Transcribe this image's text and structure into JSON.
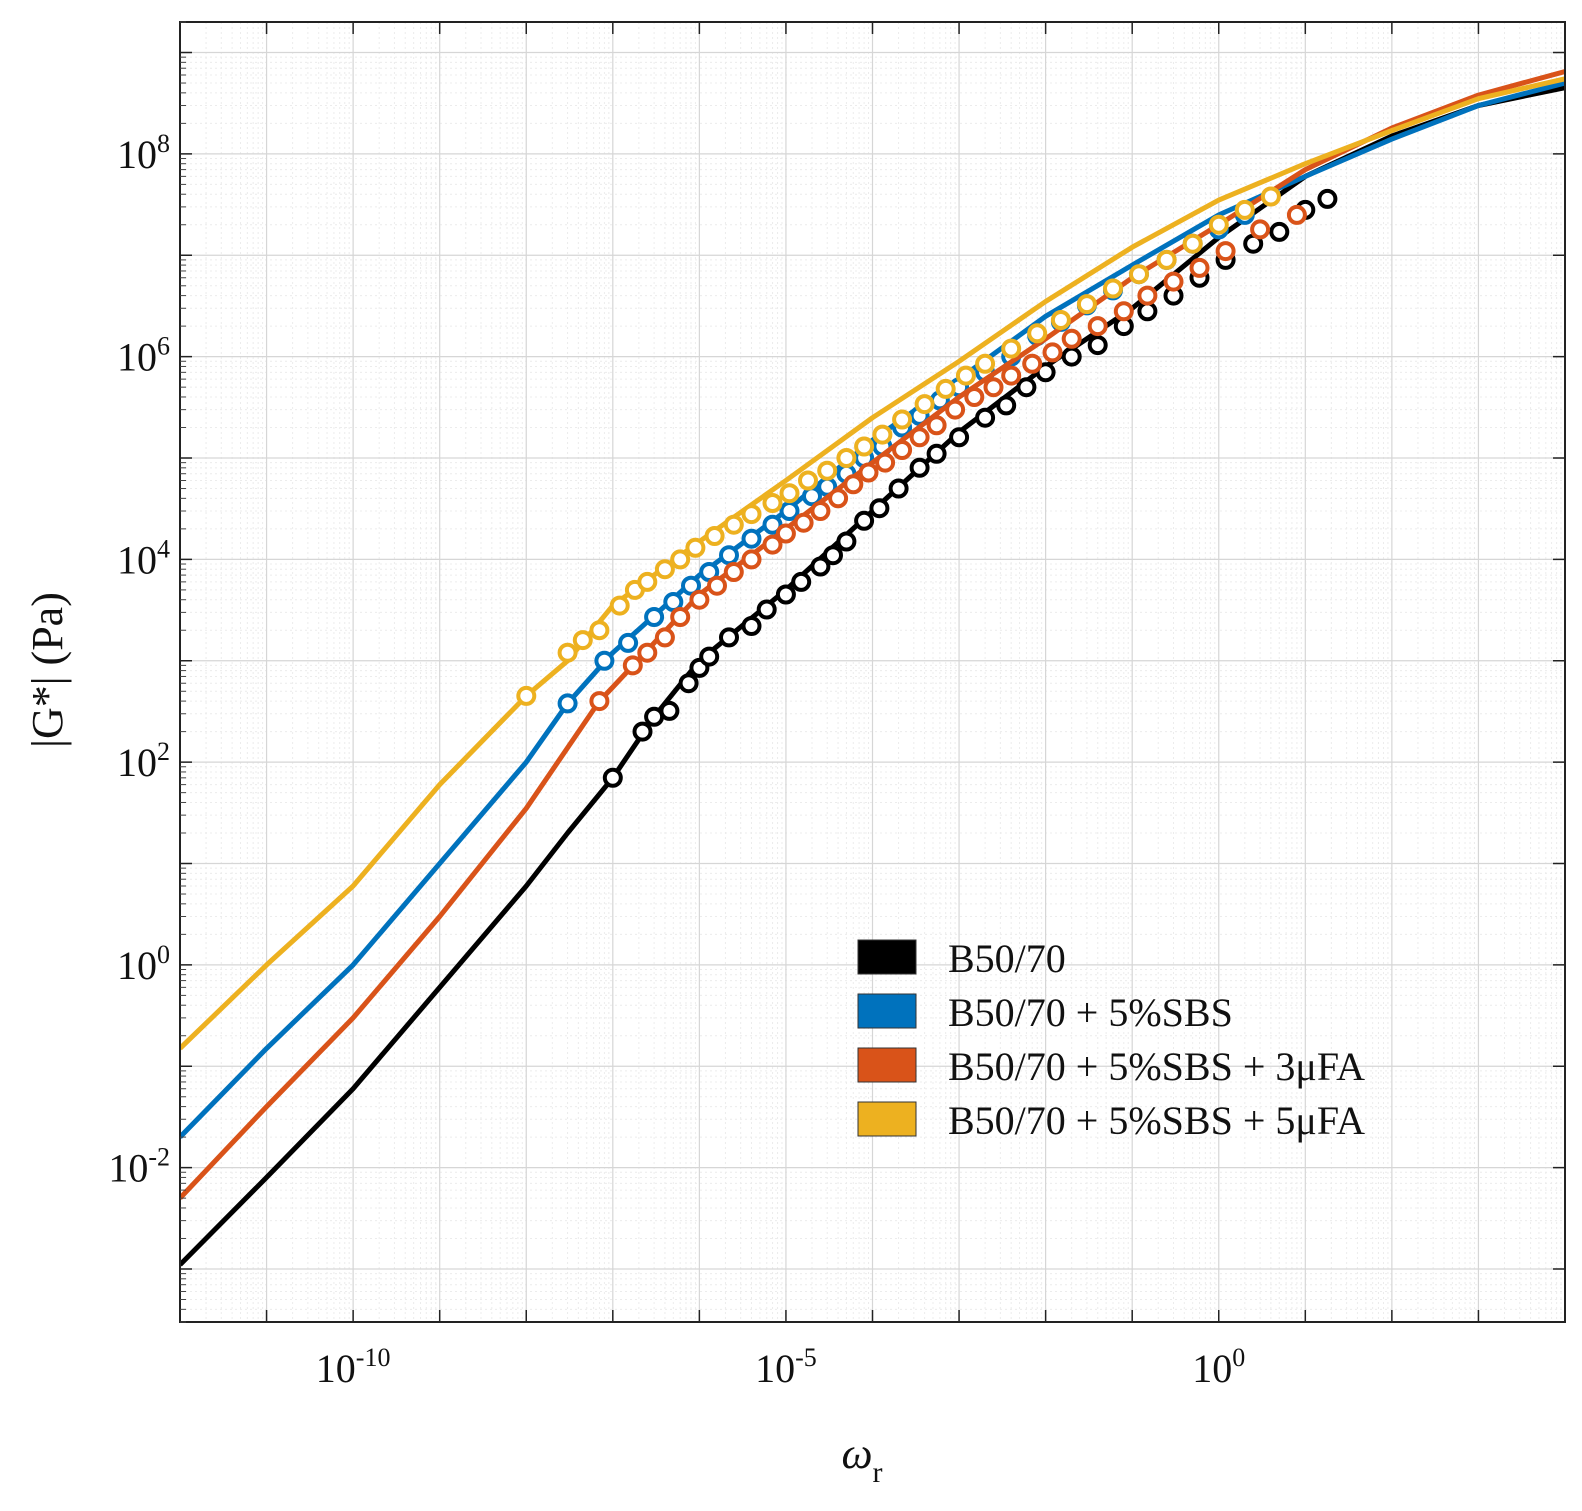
{
  "chart_data": {
    "type": "line",
    "title": "",
    "xlabel": "ω",
    "xlabel_subscript": "r",
    "ylabel": "|G*| (Pa)",
    "xscale": "log",
    "yscale": "log",
    "xlim": [
      1e-12,
      10000.0
    ],
    "ylim": [
      0.0003,
      2000000000.0
    ],
    "x_ticks": [
      {
        "value": 1e-10,
        "base": "10",
        "exp": "-10"
      },
      {
        "value": 1e-05,
        "base": "10",
        "exp": "-5"
      },
      {
        "value": 1,
        "base": "10",
        "exp": "0"
      }
    ],
    "y_ticks": [
      {
        "value": 0.01,
        "base": "10",
        "exp": "-2"
      },
      {
        "value": 1,
        "base": "10",
        "exp": "0"
      },
      {
        "value": 100.0,
        "base": "10",
        "exp": "2"
      },
      {
        "value": 10000.0,
        "base": "10",
        "exp": "4"
      },
      {
        "value": 1000000.0,
        "base": "10",
        "exp": "6"
      },
      {
        "value": 100000000.0,
        "base": "10",
        "exp": "8"
      }
    ],
    "grid": true,
    "minor_grid": true,
    "legend_position": "lower-right",
    "series": [
      {
        "name": "B50/70",
        "color": "#000000",
        "line": [
          [
            1e-12,
            0.0011
          ],
          [
            1e-11,
            0.008
          ],
          [
            1e-10,
            0.06
          ],
          [
            1e-09,
            0.6
          ],
          [
            1e-08,
            6
          ],
          [
            3e-08,
            20
          ],
          [
            1e-07,
            70
          ],
          [
            3e-07,
            280
          ],
          [
            1e-06,
            1000
          ],
          [
            1e-05,
            5000
          ],
          [
            0.0001,
            30000
          ],
          [
            0.001,
            180000
          ],
          [
            0.01,
            800000
          ],
          [
            0.1,
            3000000
          ],
          [
            1,
            15000000
          ],
          [
            10,
            60000000
          ],
          [
            100,
            150000000
          ],
          [
            1000,
            300000000
          ],
          [
            10000,
            450000000
          ]
        ],
        "markers": [
          [
            1e-07,
            70
          ],
          [
            2.2e-07,
            200
          ],
          [
            3e-07,
            280
          ],
          [
            4.5e-07,
            320
          ],
          [
            7.5e-07,
            600
          ],
          [
            1e-06,
            850
          ],
          [
            1.3e-06,
            1100
          ],
          [
            2.2e-06,
            1700
          ],
          [
            4e-06,
            2200
          ],
          [
            6e-06,
            3200
          ],
          [
            1e-05,
            4500
          ],
          [
            1.5e-05,
            6000
          ],
          [
            2.5e-05,
            8500
          ],
          [
            3.5e-05,
            11000
          ],
          [
            5e-05,
            15000
          ],
          [
            8e-05,
            24000
          ],
          [
            0.00012,
            32000
          ],
          [
            0.0002,
            50000
          ],
          [
            0.00035,
            80000
          ],
          [
            0.00055,
            110000
          ],
          [
            0.001,
            160000
          ],
          [
            0.002,
            250000
          ],
          [
            0.0035,
            330000
          ],
          [
            0.006,
            500000
          ],
          [
            0.01,
            700000
          ],
          [
            0.02,
            1000000
          ],
          [
            0.04,
            1300000
          ],
          [
            0.08,
            2000000
          ],
          [
            0.15,
            2800000
          ],
          [
            0.3,
            4000000
          ],
          [
            0.6,
            6000000
          ],
          [
            1.2,
            9000000
          ],
          [
            2.5,
            13000000
          ],
          [
            5,
            17000000
          ],
          [
            10,
            28000000
          ],
          [
            18,
            36000000
          ]
        ]
      },
      {
        "name": "B50/70 + 5%SBS",
        "color": "#0072bd",
        "line": [
          [
            1e-12,
            0.02
          ],
          [
            1e-11,
            0.15
          ],
          [
            1e-10,
            1
          ],
          [
            1e-09,
            10
          ],
          [
            1e-08,
            100
          ],
          [
            3e-08,
            380
          ],
          [
            1e-07,
            1200
          ],
          [
            1e-06,
            7000
          ],
          [
            1e-05,
            30000
          ],
          [
            0.0001,
            150000
          ],
          [
            0.001,
            600000
          ],
          [
            0.01,
            2500000
          ],
          [
            0.1,
            8000000
          ],
          [
            1,
            25000000
          ],
          [
            10,
            60000000
          ],
          [
            100,
            140000000
          ],
          [
            1000,
            300000000
          ],
          [
            10000,
            500000000
          ]
        ],
        "markers": [
          [
            3e-08,
            380
          ],
          [
            8e-08,
            1000
          ],
          [
            1.5e-07,
            1500
          ],
          [
            3e-07,
            2700
          ],
          [
            5e-07,
            3800
          ],
          [
            8e-07,
            5500
          ],
          [
            1.3e-06,
            7500
          ],
          [
            2.2e-06,
            11000
          ],
          [
            4e-06,
            16000
          ],
          [
            7e-06,
            22000
          ],
          [
            1.1e-05,
            30000
          ],
          [
            2e-05,
            42000
          ],
          [
            3e-05,
            52000
          ],
          [
            5e-05,
            70000
          ],
          [
            8e-05,
            100000
          ],
          [
            0.00013,
            130000
          ],
          [
            0.00022,
            200000
          ],
          [
            0.00035,
            260000
          ],
          [
            0.0006,
            370000
          ],
          [
            0.001,
            500000
          ],
          [
            0.002,
            700000
          ],
          [
            0.004,
            1000000
          ],
          [
            0.008,
            1600000
          ],
          [
            0.015,
            2200000
          ],
          [
            0.03,
            3200000
          ],
          [
            0.06,
            4500000
          ],
          [
            0.12,
            6500000
          ],
          [
            0.25,
            9000000
          ],
          [
            0.5,
            13000000
          ],
          [
            1,
            18000000
          ],
          [
            2,
            25000000
          ]
        ]
      },
      {
        "name": "B50/70 + 5%SBS + 3μFA",
        "color": "#d95319",
        "line": [
          [
            1e-12,
            0.005
          ],
          [
            1e-11,
            0.04
          ],
          [
            1e-10,
            0.3
          ],
          [
            1e-09,
            3
          ],
          [
            1e-08,
            35
          ],
          [
            7e-08,
            400
          ],
          [
            1e-07,
            550
          ],
          [
            1e-06,
            4500
          ],
          [
            1e-05,
            20000
          ],
          [
            0.0001,
            90000
          ],
          [
            0.001,
            400000
          ],
          [
            0.01,
            1500000
          ],
          [
            0.1,
            6000000
          ],
          [
            1,
            20000000
          ],
          [
            10,
            70000000
          ],
          [
            100,
            180000000
          ],
          [
            1000,
            380000000
          ],
          [
            10000,
            650000000
          ]
        ],
        "markers": [
          [
            7e-08,
            400
          ],
          [
            1.7e-07,
            900
          ],
          [
            2.5e-07,
            1200
          ],
          [
            4e-07,
            1700
          ],
          [
            6e-07,
            2700
          ],
          [
            1e-06,
            4000
          ],
          [
            1.6e-06,
            5500
          ],
          [
            2.5e-06,
            7500
          ],
          [
            4e-06,
            10000
          ],
          [
            7e-06,
            14000
          ],
          [
            1e-05,
            18000
          ],
          [
            1.6e-05,
            23000
          ],
          [
            2.5e-05,
            30000
          ],
          [
            4e-05,
            40000
          ],
          [
            6e-05,
            55000
          ],
          [
            9e-05,
            72000
          ],
          [
            0.00014,
            90000
          ],
          [
            0.00022,
            120000
          ],
          [
            0.00035,
            160000
          ],
          [
            0.00055,
            210000
          ],
          [
            0.0009,
            300000
          ],
          [
            0.0015,
            400000
          ],
          [
            0.0025,
            500000
          ],
          [
            0.004,
            650000
          ],
          [
            0.007,
            850000
          ],
          [
            0.012,
            1100000
          ],
          [
            0.02,
            1500000
          ],
          [
            0.04,
            2000000
          ],
          [
            0.08,
            2800000
          ],
          [
            0.15,
            4000000
          ],
          [
            0.3,
            5500000
          ],
          [
            0.6,
            7500000
          ],
          [
            1.2,
            11000000
          ],
          [
            3,
            18000000
          ],
          [
            8,
            25000000
          ]
        ]
      },
      {
        "name": "B50/70 + 5%SBS + 5μFA",
        "color": "#edb120",
        "line": [
          [
            1e-12,
            0.15
          ],
          [
            1e-11,
            1
          ],
          [
            1e-10,
            6
          ],
          [
            1e-09,
            60
          ],
          [
            1e-08,
            450
          ],
          [
            3e-08,
            1000
          ],
          [
            1e-07,
            3500
          ],
          [
            1e-06,
            15000
          ],
          [
            1e-05,
            60000
          ],
          [
            0.0001,
            250000
          ],
          [
            0.001,
            900000
          ],
          [
            0.01,
            3500000
          ],
          [
            0.1,
            12000000
          ],
          [
            1,
            35000000
          ],
          [
            10,
            80000000
          ],
          [
            100,
            170000000
          ],
          [
            1000,
            350000000
          ],
          [
            10000,
            550000000
          ]
        ],
        "markers": [
          [
            1e-08,
            450
          ],
          [
            3e-08,
            1200
          ],
          [
            4.5e-08,
            1600
          ],
          [
            7e-08,
            2000
          ],
          [
            1.2e-07,
            3500
          ],
          [
            1.8e-07,
            5000
          ],
          [
            2.5e-07,
            6000
          ],
          [
            4e-07,
            8000
          ],
          [
            6e-07,
            10000
          ],
          [
            9e-07,
            13000
          ],
          [
            1.5e-06,
            17000
          ],
          [
            2.5e-06,
            22000
          ],
          [
            4e-06,
            28000
          ],
          [
            7e-06,
            36000
          ],
          [
            1.1e-05,
            45000
          ],
          [
            1.8e-05,
            60000
          ],
          [
            3e-05,
            75000
          ],
          [
            5e-05,
            100000
          ],
          [
            8e-05,
            130000
          ],
          [
            0.00013,
            170000
          ],
          [
            0.00022,
            240000
          ],
          [
            0.0004,
            340000
          ],
          [
            0.0007,
            480000
          ],
          [
            0.0012,
            650000
          ],
          [
            0.002,
            850000
          ],
          [
            0.004,
            1200000
          ],
          [
            0.008,
            1700000
          ],
          [
            0.015,
            2300000
          ],
          [
            0.03,
            3300000
          ],
          [
            0.06,
            4700000
          ],
          [
            0.12,
            6500000
          ],
          [
            0.25,
            9000000
          ],
          [
            0.5,
            13000000
          ],
          [
            1,
            20000000
          ],
          [
            2,
            28000000
          ],
          [
            4,
            38000000
          ]
        ]
      }
    ]
  }
}
